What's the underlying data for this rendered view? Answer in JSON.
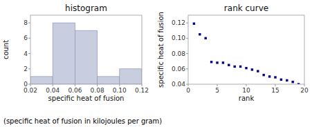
{
  "chart_data": [
    {
      "type": "histogram",
      "title": "histogram",
      "xlabel": "specific heat of fusion",
      "ylabel": "count",
      "bins": [
        0.02,
        0.04,
        0.06,
        0.08,
        0.1,
        0.12
      ],
      "values": [
        1,
        8,
        7,
        1,
        2
      ],
      "color": "#c8cde0",
      "xlim": [
        0.02,
        0.12
      ],
      "ylim": [
        0,
        9
      ],
      "xticks": [
        0.02,
        0.04,
        0.06,
        0.08,
        {
          "value": 0.1,
          "label": "0.10"
        },
        0.12
      ],
      "yticks": [
        0,
        2,
        4,
        6,
        8
      ],
      "grid": false,
      "annotation": "(specific heat of fusion in kilojoules per gram)"
    },
    {
      "type": "scatter",
      "title": "rank curve",
      "xlabel": "rank",
      "ylabel": "specific heat of fusion",
      "x": [
        1,
        2,
        3,
        4,
        5,
        6,
        7,
        8,
        9,
        10,
        11,
        12,
        13,
        14,
        15,
        16,
        17,
        18,
        19
      ],
      "values": [
        0.119,
        0.105,
        0.1,
        0.069,
        0.068,
        0.068,
        0.065,
        0.063,
        0.063,
        0.061,
        0.059,
        0.057,
        0.052,
        0.05,
        0.049,
        0.046,
        0.045,
        0.043,
        0.04
      ],
      "color": "#00008b",
      "marker": "square",
      "xlim": [
        0,
        20
      ],
      "ylim": [
        0.04,
        0.13
      ],
      "xticks": [
        0,
        5,
        10,
        15,
        20
      ],
      "yticks": [
        0.04,
        0.06,
        0.08,
        {
          "value": 0.1,
          "label": "0.10"
        },
        0.12
      ],
      "grid": false
    }
  ]
}
